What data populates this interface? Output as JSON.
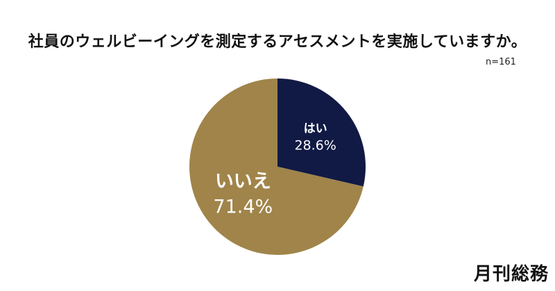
{
  "chart_data": {
    "type": "pie",
    "title": "社員のウェルビーイングを測定するアセスメントを実施していますか。",
    "sample_size": "n=161",
    "slices": [
      {
        "label": "はい",
        "value": 28.6,
        "value_label": "28.6%",
        "color": "#111a44"
      },
      {
        "label": "いいえ",
        "value": 71.4,
        "value_label": "71.4%",
        "color": "#a0844a"
      }
    ],
    "start_angle": "12 o'clock",
    "direction": "clockwise"
  },
  "brand": {
    "logo_text": "月刊総務"
  }
}
